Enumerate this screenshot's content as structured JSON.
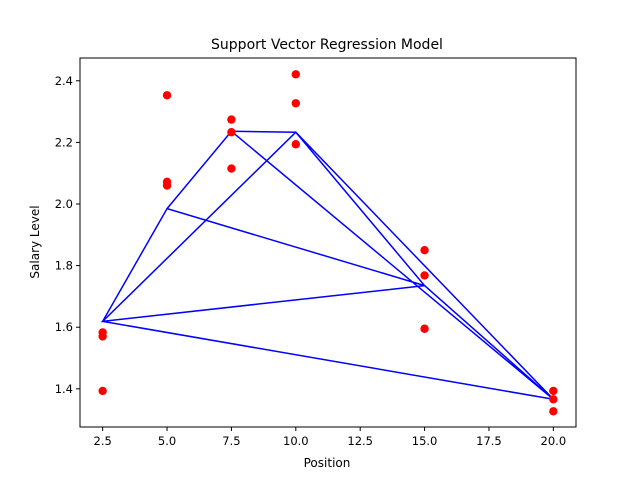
{
  "chart_data": {
    "type": "scatter",
    "title": "Support Vector Regression Model",
    "xlabel": "Position",
    "ylabel": "Salary Level",
    "xlim": [
      1.62,
      20.88
    ],
    "ylim": [
      1.276,
      2.474
    ],
    "grid": false,
    "x_ticks": [
      "2.5",
      "5.0",
      "7.5",
      "10.0",
      "12.5",
      "15.0",
      "17.5",
      "20.0"
    ],
    "y_ticks": [
      "1.4",
      "1.6",
      "1.8",
      "2.0",
      "2.2",
      "2.4"
    ],
    "series": [
      {
        "kind": "scatter",
        "color": "#ff0000",
        "points": [
          {
            "x": 2.5,
            "y": 1.583
          },
          {
            "x": 2.5,
            "y": 1.57
          },
          {
            "x": 2.5,
            "y": 1.393
          },
          {
            "x": 5.0,
            "y": 2.353
          },
          {
            "x": 5.0,
            "y": 2.072
          },
          {
            "x": 5.0,
            "y": 2.06
          },
          {
            "x": 7.5,
            "y": 2.274
          },
          {
            "x": 7.5,
            "y": 2.233
          },
          {
            "x": 7.5,
            "y": 2.115
          },
          {
            "x": 10.0,
            "y": 2.421
          },
          {
            "x": 10.0,
            "y": 2.327
          },
          {
            "x": 10.0,
            "y": 2.194
          },
          {
            "x": 15.0,
            "y": 1.85
          },
          {
            "x": 15.0,
            "y": 1.768
          },
          {
            "x": 15.0,
            "y": 1.595
          },
          {
            "x": 20.0,
            "y": 1.393
          },
          {
            "x": 20.0,
            "y": 1.366
          },
          {
            "x": 20.0,
            "y": 1.327
          }
        ]
      },
      {
        "kind": "line",
        "color": "#0000ff",
        "points": [
          {
            "x": 2.5,
            "y": 1.619
          },
          {
            "x": 5.0,
            "y": 1.985
          },
          {
            "x": 7.5,
            "y": 2.236
          },
          {
            "x": 10.0,
            "y": 2.233
          },
          {
            "x": 15.0,
            "y": 1.735
          },
          {
            "x": 20.0,
            "y": 1.366
          },
          {
            "x": 7.5,
            "y": 2.236
          },
          {
            "x": 5.0,
            "y": 1.985
          },
          {
            "x": 15.0,
            "y": 1.735
          },
          {
            "x": 2.5,
            "y": 1.619
          },
          {
            "x": 10.0,
            "y": 2.233
          },
          {
            "x": 20.0,
            "y": 1.366
          },
          {
            "x": 2.5,
            "y": 1.619
          },
          {
            "x": 15.0,
            "y": 1.735
          },
          {
            "x": 20.0,
            "y": 1.366
          }
        ]
      }
    ]
  }
}
